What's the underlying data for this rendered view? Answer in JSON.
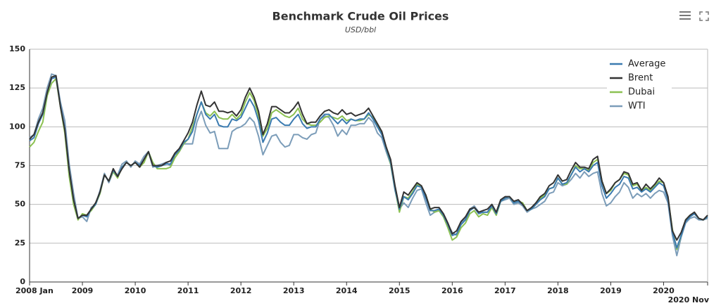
{
  "chart_data": {
    "type": "line",
    "title": "Benchmark Crude Oil Prices",
    "subtitle": "USD/bbl",
    "categories": [
      "2008 Jan",
      null,
      null,
      null,
      null,
      null,
      null,
      null,
      null,
      null,
      null,
      null,
      "2009",
      null,
      null,
      null,
      null,
      null,
      null,
      null,
      null,
      null,
      null,
      null,
      "2010",
      null,
      null,
      null,
      null,
      null,
      null,
      null,
      null,
      null,
      null,
      null,
      "2011",
      null,
      null,
      null,
      null,
      null,
      null,
      null,
      null,
      null,
      null,
      null,
      "2012",
      null,
      null,
      null,
      null,
      null,
      null,
      null,
      null,
      null,
      null,
      null,
      "2013",
      null,
      null,
      null,
      null,
      null,
      null,
      null,
      null,
      null,
      null,
      null,
      "2014",
      null,
      null,
      null,
      null,
      null,
      null,
      null,
      null,
      null,
      null,
      null,
      "2015",
      null,
      null,
      null,
      null,
      null,
      null,
      null,
      null,
      null,
      null,
      null,
      "2016",
      null,
      null,
      null,
      null,
      null,
      null,
      null,
      null,
      null,
      null,
      null,
      "2017",
      null,
      null,
      null,
      null,
      null,
      null,
      null,
      null,
      null,
      null,
      null,
      "2018",
      null,
      null,
      null,
      null,
      null,
      null,
      null,
      null,
      null,
      null,
      null,
      "2019",
      null,
      null,
      null,
      null,
      null,
      null,
      null,
      null,
      null,
      null,
      null,
      "2020",
      null,
      null,
      null,
      null,
      null,
      null,
      null,
      null,
      null,
      "2020 Nov"
    ],
    "series": [
      {
        "name": "Average",
        "color": "#3b7bb0",
        "values": [
          91,
          93,
          102,
          108,
          122,
          131,
          132,
          114,
          99,
          72,
          53,
          41,
          43,
          42,
          47,
          50,
          58,
          69,
          65,
          72,
          68,
          74,
          77,
          75,
          77,
          75,
          79,
          84,
          75,
          74,
          75,
          76,
          76,
          82,
          85,
          90,
          92,
          97,
          108,
          116,
          108,
          105,
          108,
          101,
          100,
          100,
          105,
          104,
          106,
          112,
          118,
          113,
          104,
          90,
          96,
          105,
          106,
          103,
          101,
          101,
          105,
          108,
          102,
          99,
          100,
          100,
          105,
          108,
          108,
          105,
          102,
          105,
          102,
          105,
          104,
          105,
          105,
          109,
          105,
          100,
          95,
          86,
          77,
          60,
          47,
          55,
          53,
          57,
          62,
          61,
          54,
          46,
          46,
          47,
          43,
          37,
          30,
          31,
          37,
          40,
          46,
          48,
          44,
          45,
          45,
          49,
          44,
          52,
          54,
          55,
          51,
          52,
          50,
          46,
          47,
          50,
          53,
          55,
          60,
          61,
          67,
          63,
          64,
          69,
          74,
          71,
          73,
          71,
          75,
          77,
          62,
          54,
          57,
          61,
          63,
          68,
          67,
          60,
          61,
          58,
          60,
          58,
          61,
          64,
          62,
          53,
          32,
          22,
          30,
          39,
          42,
          44,
          41,
          40,
          42
        ]
      },
      {
        "name": "Brent",
        "color": "#333333",
        "values": [
          92,
          95,
          103,
          109,
          122,
          132,
          133,
          113,
          98,
          72,
          53,
          41,
          43,
          43,
          47,
          51,
          58,
          69,
          65,
          73,
          68,
          73,
          77,
          75,
          77,
          74,
          79,
          84,
          75,
          75,
          75,
          77,
          78,
          83,
          86,
          91,
          96,
          103,
          114,
          123,
          114,
          113,
          116,
          110,
          110,
          109,
          110,
          107,
          111,
          119,
          125,
          119,
          110,
          95,
          102,
          113,
          113,
          111,
          109,
          109,
          112,
          116,
          108,
          102,
          103,
          103,
          107,
          110,
          111,
          109,
          108,
          111,
          108,
          109,
          107,
          108,
          109,
          112,
          107,
          102,
          97,
          87,
          79,
          62,
          48,
          58,
          56,
          60,
          64,
          62,
          56,
          47,
          48,
          48,
          44,
          38,
          31,
          33,
          39,
          42,
          47,
          48,
          45,
          46,
          47,
          50,
          45,
          53,
          55,
          55,
          52,
          53,
          50,
          46,
          48,
          51,
          55,
          57,
          62,
          64,
          69,
          65,
          66,
          72,
          77,
          74,
          74,
          73,
          79,
          81,
          65,
          57,
          60,
          64,
          66,
          71,
          70,
          63,
          64,
          59,
          63,
          60,
          63,
          67,
          64,
          55,
          33,
          27,
          32,
          40,
          43,
          45,
          41,
          40,
          43
        ]
      },
      {
        "name": "Dubai",
        "color": "#8cc152",
        "values": [
          87,
          90,
          97,
          103,
          120,
          128,
          131,
          113,
          96,
          68,
          50,
          40,
          44,
          43,
          46,
          50,
          57,
          69,
          65,
          71,
          67,
          74,
          77,
          75,
          77,
          74,
          77,
          84,
          77,
          73,
          73,
          73,
          74,
          80,
          84,
          89,
          92,
          100,
          108,
          116,
          109,
          107,
          110,
          106,
          105,
          105,
          108,
          105,
          108,
          116,
          122,
          117,
          107,
          94,
          99,
          109,
          111,
          109,
          107,
          106,
          108,
          112,
          105,
          102,
          101,
          101,
          103,
          106,
          107,
          106,
          105,
          107,
          104,
          105,
          104,
          104,
          105,
          108,
          106,
          101,
          96,
          86,
          76,
          60,
          45,
          55,
          54,
          58,
          63,
          61,
          56,
          47,
          45,
          46,
          42,
          35,
          27,
          29,
          35,
          38,
          44,
          46,
          42,
          44,
          43,
          48,
          43,
          52,
          54,
          55,
          51,
          52,
          51,
          46,
          47,
          50,
          54,
          56,
          60,
          61,
          67,
          63,
          63,
          69,
          75,
          73,
          73,
          72,
          77,
          79,
          65,
          57,
          59,
          64,
          66,
          70,
          69,
          62,
          63,
          59,
          61,
          59,
          62,
          65,
          64,
          54,
          34,
          21,
          30,
          40,
          43,
          44,
          41,
          40,
          42
        ]
      },
      {
        "name": "WTI",
        "color": "#7c9db9",
        "values": [
          93,
          95,
          105,
          112,
          125,
          134,
          133,
          116,
          104,
          76,
          57,
          41,
          42,
          39,
          48,
          50,
          59,
          70,
          64,
          71,
          69,
          76,
          78,
          74,
          78,
          76,
          81,
          84,
          74,
          75,
          76,
          77,
          75,
          82,
          84,
          89,
          89,
          89,
          103,
          110,
          101,
          96,
          97,
          86,
          86,
          86,
          97,
          99,
          100,
          102,
          106,
          103,
          94,
          82,
          88,
          94,
          95,
          90,
          87,
          88,
          95,
          95,
          93,
          92,
          95,
          96,
          105,
          107,
          106,
          101,
          94,
          98,
          95,
          101,
          101,
          102,
          102,
          106,
          103,
          96,
          93,
          84,
          76,
          59,
          47,
          51,
          48,
          54,
          59,
          60,
          51,
          43,
          45,
          46,
          42,
          37,
          32,
          30,
          38,
          41,
          47,
          49,
          45,
          45,
          45,
          50,
          45,
          52,
          53,
          54,
          50,
          51,
          49,
          45,
          47,
          48,
          50,
          52,
          57,
          58,
          64,
          62,
          63,
          66,
          70,
          67,
          71,
          68,
          70,
          71,
          57,
          49,
          51,
          55,
          58,
          64,
          61,
          54,
          57,
          55,
          57,
          54,
          57,
          59,
          58,
          51,
          30,
          17,
          29,
          38,
          41,
          42,
          40,
          40,
          41
        ]
      }
    ],
    "ylim": [
      0,
      150
    ],
    "yticks": [
      0,
      25,
      50,
      75,
      100,
      125,
      150
    ],
    "grid": true,
    "legend": "top-right"
  }
}
